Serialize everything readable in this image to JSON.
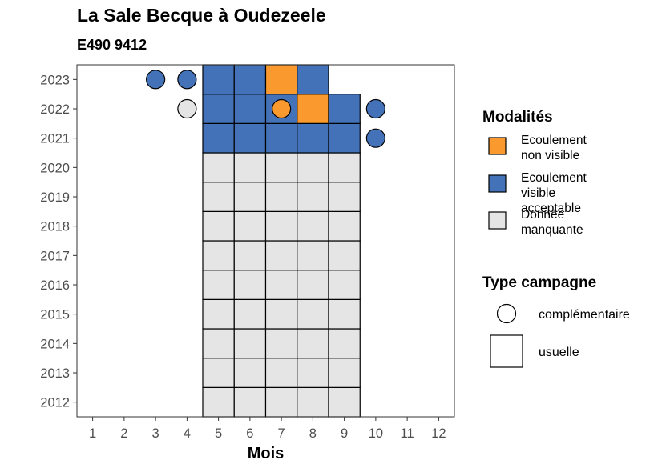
{
  "chart_data": {
    "type": "heatmap",
    "title": "La Sale Becque à Oudezeele",
    "subtitle": "E490 9412",
    "xlabel": "Mois",
    "ylabel": "",
    "x_ticks": [
      "1",
      "2",
      "3",
      "4",
      "5",
      "6",
      "7",
      "8",
      "9",
      "10",
      "11",
      "12"
    ],
    "y_ticks": [
      "2012",
      "2013",
      "2014",
      "2015",
      "2016",
      "2017",
      "2018",
      "2019",
      "2020",
      "2021",
      "2022",
      "2023"
    ],
    "xlim": [
      0.5,
      12.5
    ],
    "ylim": [
      2011.5,
      2023.5
    ],
    "grid": false,
    "legend_position": "right",
    "categories": [
      {
        "key": "nv",
        "label": "Ecoulement non visible",
        "color": "#f9992e"
      },
      {
        "key": "va",
        "label": "Ecoulement visible acceptable",
        "color": "#4472b8"
      },
      {
        "key": "dm",
        "label": "Donnée manquante",
        "color": "#e5e5e5"
      }
    ],
    "legend_modalites": {
      "title": "Modalités",
      "items": [
        {
          "color": "#f9992e",
          "lines": [
            "Ecoulement",
            "non visible"
          ]
        },
        {
          "color": "#4472b8",
          "lines": [
            "Ecoulement",
            "visible",
            "acceptable"
          ]
        },
        {
          "color": "#e5e5e5",
          "lines": [
            "Donnée",
            "manquante"
          ]
        }
      ]
    },
    "legend_campagne": {
      "title": "Type campagne",
      "items": [
        {
          "shape": "circle",
          "label": "complémentaire"
        },
        {
          "shape": "square",
          "label": "usuelle"
        }
      ]
    },
    "usuelle": [
      {
        "year": 2012,
        "month": 5,
        "cat": "dm"
      },
      {
        "year": 2012,
        "month": 6,
        "cat": "dm"
      },
      {
        "year": 2012,
        "month": 7,
        "cat": "dm"
      },
      {
        "year": 2012,
        "month": 8,
        "cat": "dm"
      },
      {
        "year": 2012,
        "month": 9,
        "cat": "dm"
      },
      {
        "year": 2013,
        "month": 5,
        "cat": "dm"
      },
      {
        "year": 2013,
        "month": 6,
        "cat": "dm"
      },
      {
        "year": 2013,
        "month": 7,
        "cat": "dm"
      },
      {
        "year": 2013,
        "month": 8,
        "cat": "dm"
      },
      {
        "year": 2013,
        "month": 9,
        "cat": "dm"
      },
      {
        "year": 2014,
        "month": 5,
        "cat": "dm"
      },
      {
        "year": 2014,
        "month": 6,
        "cat": "dm"
      },
      {
        "year": 2014,
        "month": 7,
        "cat": "dm"
      },
      {
        "year": 2014,
        "month": 8,
        "cat": "dm"
      },
      {
        "year": 2014,
        "month": 9,
        "cat": "dm"
      },
      {
        "year": 2015,
        "month": 5,
        "cat": "dm"
      },
      {
        "year": 2015,
        "month": 6,
        "cat": "dm"
      },
      {
        "year": 2015,
        "month": 7,
        "cat": "dm"
      },
      {
        "year": 2015,
        "month": 8,
        "cat": "dm"
      },
      {
        "year": 2015,
        "month": 9,
        "cat": "dm"
      },
      {
        "year": 2016,
        "month": 5,
        "cat": "dm"
      },
      {
        "year": 2016,
        "month": 6,
        "cat": "dm"
      },
      {
        "year": 2016,
        "month": 7,
        "cat": "dm"
      },
      {
        "year": 2016,
        "month": 8,
        "cat": "dm"
      },
      {
        "year": 2016,
        "month": 9,
        "cat": "dm"
      },
      {
        "year": 2017,
        "month": 5,
        "cat": "dm"
      },
      {
        "year": 2017,
        "month": 6,
        "cat": "dm"
      },
      {
        "year": 2017,
        "month": 7,
        "cat": "dm"
      },
      {
        "year": 2017,
        "month": 8,
        "cat": "dm"
      },
      {
        "year": 2017,
        "month": 9,
        "cat": "dm"
      },
      {
        "year": 2018,
        "month": 5,
        "cat": "dm"
      },
      {
        "year": 2018,
        "month": 6,
        "cat": "dm"
      },
      {
        "year": 2018,
        "month": 7,
        "cat": "dm"
      },
      {
        "year": 2018,
        "month": 8,
        "cat": "dm"
      },
      {
        "year": 2018,
        "month": 9,
        "cat": "dm"
      },
      {
        "year": 2019,
        "month": 5,
        "cat": "dm"
      },
      {
        "year": 2019,
        "month": 6,
        "cat": "dm"
      },
      {
        "year": 2019,
        "month": 7,
        "cat": "dm"
      },
      {
        "year": 2019,
        "month": 8,
        "cat": "dm"
      },
      {
        "year": 2019,
        "month": 9,
        "cat": "dm"
      },
      {
        "year": 2020,
        "month": 5,
        "cat": "dm"
      },
      {
        "year": 2020,
        "month": 6,
        "cat": "dm"
      },
      {
        "year": 2020,
        "month": 7,
        "cat": "dm"
      },
      {
        "year": 2020,
        "month": 8,
        "cat": "dm"
      },
      {
        "year": 2020,
        "month": 9,
        "cat": "dm"
      },
      {
        "year": 2021,
        "month": 5,
        "cat": "va"
      },
      {
        "year": 2021,
        "month": 6,
        "cat": "va"
      },
      {
        "year": 2021,
        "month": 7,
        "cat": "va"
      },
      {
        "year": 2021,
        "month": 8,
        "cat": "va"
      },
      {
        "year": 2021,
        "month": 9,
        "cat": "va"
      },
      {
        "year": 2022,
        "month": 5,
        "cat": "va"
      },
      {
        "year": 2022,
        "month": 6,
        "cat": "va"
      },
      {
        "year": 2022,
        "month": 7,
        "cat": "va"
      },
      {
        "year": 2022,
        "month": 8,
        "cat": "nv"
      },
      {
        "year": 2022,
        "month": 9,
        "cat": "va"
      },
      {
        "year": 2023,
        "month": 5,
        "cat": "va"
      },
      {
        "year": 2023,
        "month": 6,
        "cat": "va"
      },
      {
        "year": 2023,
        "month": 7,
        "cat": "nv"
      },
      {
        "year": 2023,
        "month": 8,
        "cat": "va"
      }
    ],
    "complementaire": [
      {
        "year": 2023,
        "month": 3,
        "cat": "va"
      },
      {
        "year": 2023,
        "month": 4,
        "cat": "va"
      },
      {
        "year": 2022,
        "month": 4,
        "cat": "dm"
      },
      {
        "year": 2022,
        "month": 7,
        "cat": "nv"
      },
      {
        "year": 2022,
        "month": 10,
        "cat": "va"
      },
      {
        "year": 2021,
        "month": 10,
        "cat": "va"
      }
    ]
  }
}
